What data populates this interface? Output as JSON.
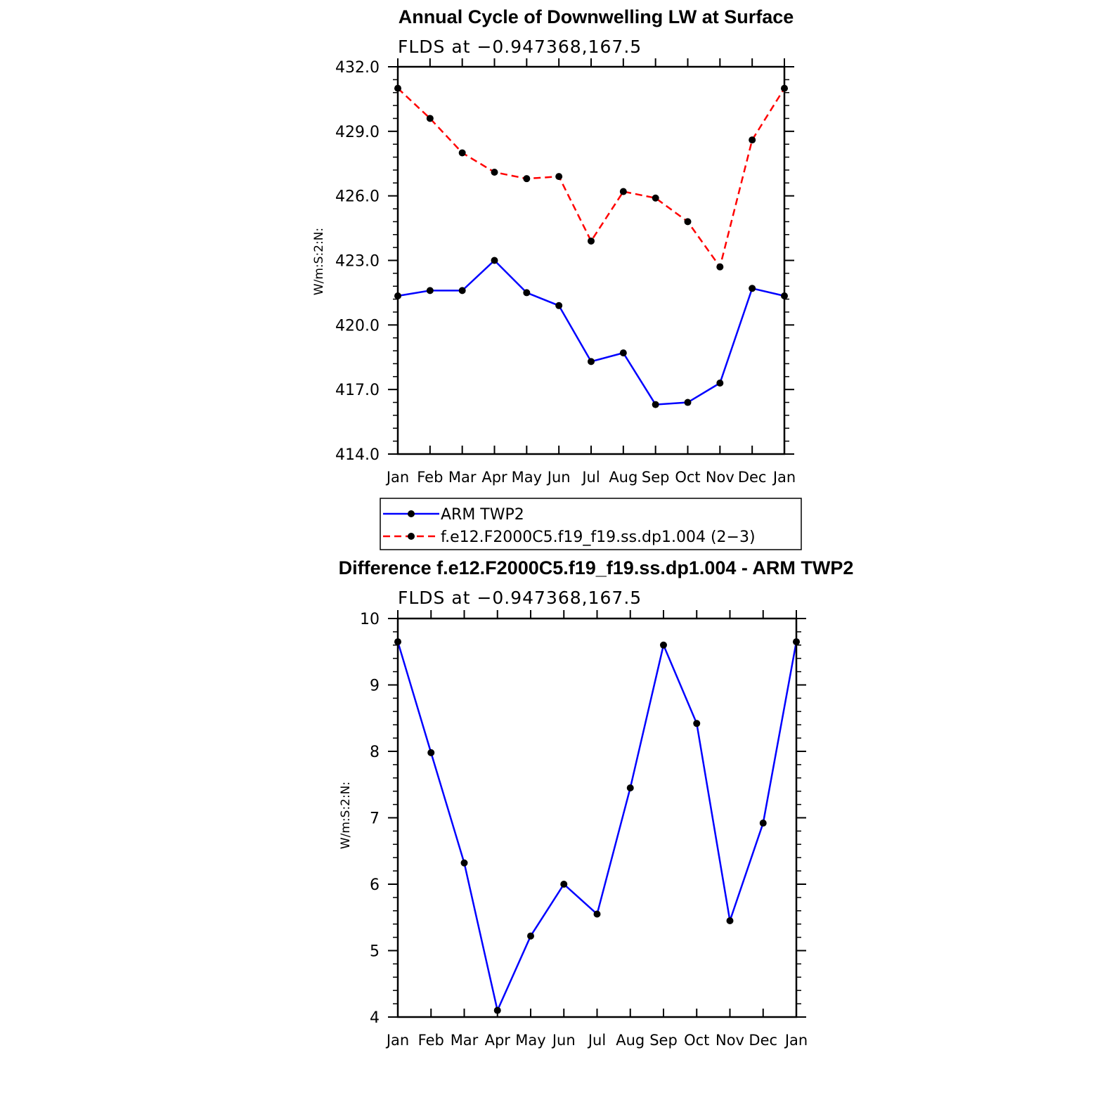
{
  "chart_data": [
    {
      "type": "line",
      "title": "Annual Cycle of Downwelling LW at Surface",
      "subtitle": "FLDS at −0.947368,167.5",
      "ylabel": "W/m:S:2:N:",
      "xlabel": "",
      "categories": [
        "Jan",
        "Feb",
        "Mar",
        "Apr",
        "May",
        "Jun",
        "Jul",
        "Aug",
        "Sep",
        "Oct",
        "Nov",
        "Dec",
        "Jan"
      ],
      "ylim": [
        414.0,
        432.0
      ],
      "yticks": [
        "414.0",
        "417.0",
        "420.0",
        "423.0",
        "426.0",
        "429.0",
        "432.0"
      ],
      "grid": false,
      "legend_position": "bottom",
      "series": [
        {
          "name": "ARM TWP2",
          "color": "#0000ff",
          "dash": "solid",
          "values": [
            421.35,
            421.6,
            421.6,
            423.0,
            421.5,
            420.9,
            418.3,
            418.7,
            416.3,
            416.4,
            417.3,
            421.7,
            421.35
          ]
        },
        {
          "name": "f.e12.F2000C5.f19_f19.ss.dp1.004 (2−3)",
          "color": "#ff0000",
          "dash": "dashed",
          "values": [
            431.0,
            429.6,
            428.0,
            427.1,
            426.8,
            426.9,
            423.9,
            426.2,
            425.9,
            424.8,
            422.7,
            428.6,
            431.0
          ]
        }
      ]
    },
    {
      "type": "line",
      "title": "Difference f.e12.F2000C5.f19_f19.ss.dp1.004 - ARM TWP2",
      "subtitle": "FLDS at −0.947368,167.5",
      "ylabel": "W/m:S:2:N:",
      "xlabel": "",
      "categories": [
        "Jan",
        "Feb",
        "Mar",
        "Apr",
        "May",
        "Jun",
        "Jul",
        "Aug",
        "Sep",
        "Oct",
        "Nov",
        "Dec",
        "Jan"
      ],
      "ylim": [
        4,
        10
      ],
      "yticks": [
        "4",
        "5",
        "6",
        "7",
        "8",
        "9",
        "10"
      ],
      "grid": false,
      "series": [
        {
          "color": "#0000ff",
          "dash": "solid",
          "values": [
            9.65,
            7.98,
            6.32,
            4.1,
            5.22,
            6.0,
            5.55,
            7.45,
            9.6,
            8.42,
            5.45,
            6.92,
            9.65
          ]
        }
      ]
    }
  ]
}
